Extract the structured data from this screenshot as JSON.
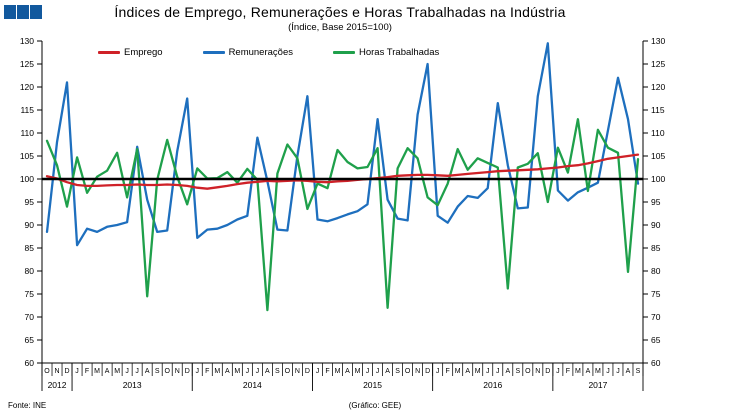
{
  "footer": {
    "source": "Fonte: INE",
    "credit": "(Gráfico: GEE)"
  },
  "logo": {
    "square_color": "#12599E",
    "square_count": 3
  },
  "chart_data": {
    "type": "line",
    "title": "Índices de Emprego, Remunerações e Horas Trabalhadas na Indústria",
    "subtitle": "(Índice, Base 2015=100)",
    "ylim": [
      60,
      130
    ],
    "y_ticks": [
      60,
      65,
      70,
      75,
      80,
      85,
      90,
      95,
      100,
      105,
      110,
      115,
      120,
      125,
      130
    ],
    "grid": "off",
    "legend_position": "top",
    "reference_line": 100,
    "reference_color": "#000000",
    "x_labels": [
      "O",
      "N",
      "D",
      "J",
      "F",
      "M",
      "A",
      "M",
      "J",
      "J",
      "A",
      "S",
      "O",
      "N",
      "D",
      "J",
      "F",
      "M",
      "A",
      "M",
      "J",
      "J",
      "A",
      "S",
      "O",
      "N",
      "D",
      "J",
      "F",
      "M",
      "A",
      "M",
      "J",
      "J",
      "A",
      "S",
      "O",
      "N",
      "D",
      "J",
      "F",
      "M",
      "A",
      "M",
      "J",
      "J",
      "A",
      "S",
      "O",
      "N",
      "D",
      "J",
      "F",
      "M",
      "A",
      "M",
      "J",
      "J",
      "A",
      "S"
    ],
    "year_groups": [
      {
        "label": "2012",
        "months": 3
      },
      {
        "label": "2013",
        "months": 12
      },
      {
        "label": "2014",
        "months": 12
      },
      {
        "label": "2015",
        "months": 12
      },
      {
        "label": "2016",
        "months": 12
      },
      {
        "label": "2017",
        "months": 9
      }
    ],
    "series": [
      {
        "name": "Emprego",
        "color": "#CF2128",
        "values": [
          100.6,
          100.1,
          99.3,
          98.7,
          98.5,
          98.5,
          98.6,
          98.7,
          98.7,
          98.8,
          98.7,
          98.7,
          98.8,
          98.7,
          98.5,
          98.1,
          97.9,
          98.2,
          98.5,
          98.9,
          99.2,
          99.4,
          99.6,
          99.5,
          99.6,
          99.7,
          99.6,
          99.4,
          99.3,
          99.5,
          99.6,
          99.8,
          100.0,
          100.2,
          100.4,
          100.7,
          100.8,
          100.9,
          100.9,
          100.8,
          100.7,
          100.9,
          101.1,
          101.3,
          101.5,
          101.7,
          101.8,
          101.9,
          102.0,
          102.1,
          102.3,
          102.5,
          102.8,
          103.0,
          103.4,
          103.9,
          104.4,
          104.7,
          105.0,
          105.3
        ]
      },
      {
        "name": "Remunerações",
        "color": "#1E6FBE",
        "values": [
          88.5,
          108,
          121,
          85.6,
          89.2,
          88.5,
          89.6,
          90,
          90.6,
          107,
          95.5,
          88.5,
          88.8,
          106,
          117.5,
          87.2,
          89,
          89.2,
          90,
          91.2,
          92,
          109,
          99.5,
          89,
          88.8,
          105,
          118,
          91.2,
          90.8,
          91.5,
          92.3,
          93,
          94.5,
          113,
          95.5,
          91.4,
          91,
          114,
          125,
          92,
          90.5,
          94,
          96.3,
          95.9,
          98,
          116.5,
          103,
          93.6,
          93.8,
          118,
          129.5,
          97.5,
          95.3,
          97.1,
          98.1,
          99.2,
          110.5,
          122,
          113,
          99
        ]
      },
      {
        "name": "Horas Trabalhadas",
        "color": "#1FA04B",
        "values": [
          108.3,
          103,
          94,
          104.7,
          97,
          100.5,
          101.8,
          105.7,
          96,
          106.5,
          74.5,
          99.8,
          108.5,
          100.5,
          94.5,
          102.3,
          100.1,
          100.2,
          101.5,
          99.2,
          102.2,
          99.8,
          71.5,
          101.2,
          107.5,
          104.5,
          93.5,
          99,
          98,
          106.3,
          103.7,
          102.3,
          102.6,
          106.7,
          72,
          102.3,
          106.7,
          104.5,
          96,
          94.3,
          99,
          106.5,
          102,
          104.5,
          103.5,
          102.5,
          76.2,
          102.5,
          103.3,
          105.6,
          95,
          106.8,
          101.4,
          113,
          97.4,
          110.7,
          106.8,
          105.7,
          79.8,
          104.3
        ]
      }
    ]
  }
}
